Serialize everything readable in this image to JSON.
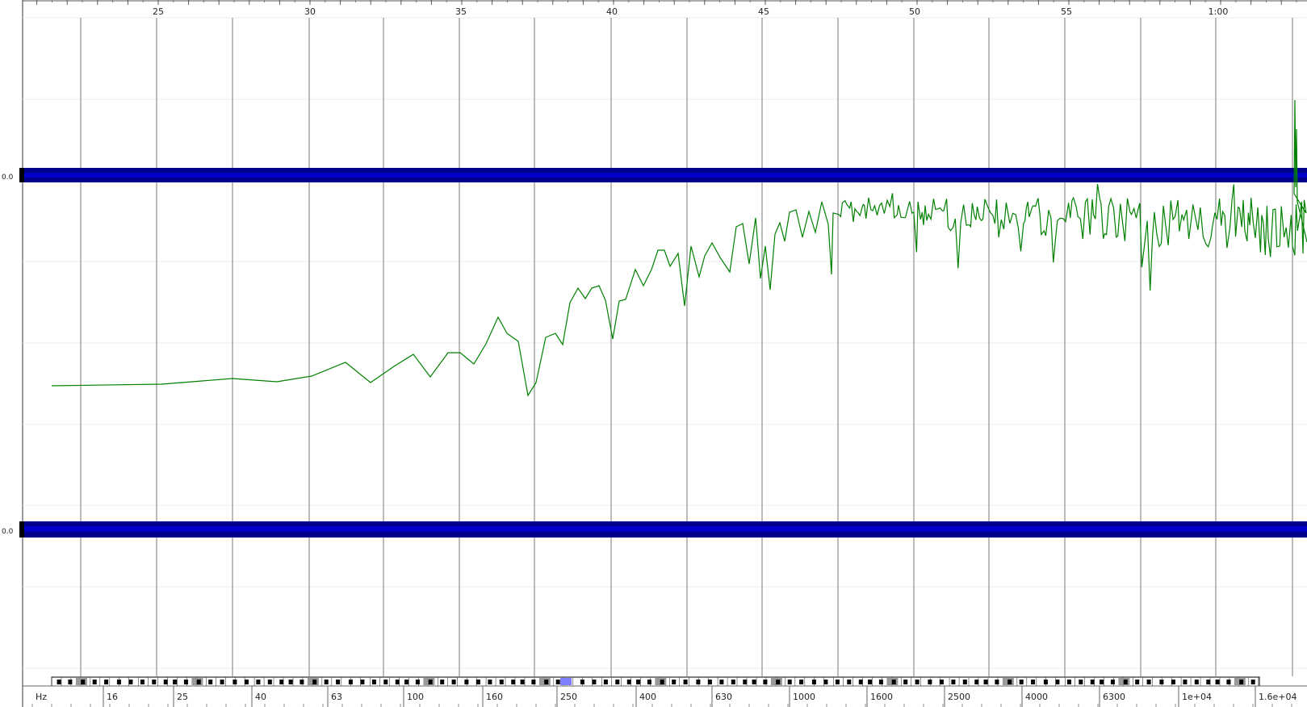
{
  "time_ruler": {
    "labels": [
      "25",
      "30",
      "35",
      "40",
      "45",
      "50",
      "55",
      "1:00"
    ]
  },
  "track_levels": {
    "upper": "0.0",
    "lower": "0.0"
  },
  "spectrum": {
    "unit": "Hz",
    "freq_labels": [
      "16",
      "25",
      "40",
      "63",
      "100",
      "160",
      "250",
      "400",
      "630",
      "1000",
      "1600",
      "2500",
      "4000",
      "6300",
      "1e+04",
      "1.6e+04"
    ],
    "highlighted_key": "250"
  },
  "colors": {
    "waveform": "#00008b",
    "spectrum_line": "#008000",
    "grid_line": "#7a7a7a",
    "piano_highlight": "#8080ff",
    "piano_gray": "#9a9a9a"
  }
}
